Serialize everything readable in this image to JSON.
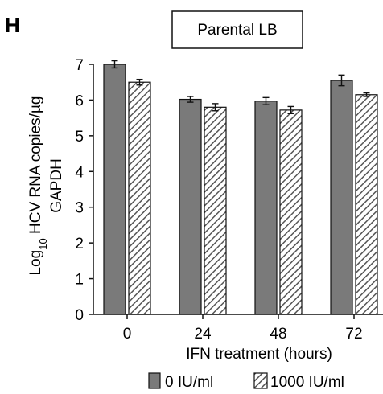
{
  "figure": {
    "panel_letter": "H",
    "box_title": "Parental LB"
  },
  "chart_data": {
    "type": "bar",
    "title": "Parental LB",
    "xlabel": "IFN treatment (hours)",
    "ylabel_main": "Log",
    "ylabel_sub": "10",
    "ylabel_rest": " HCV RNA copies/µg",
    "ylabel_line2": "GAPDH",
    "categories": [
      "0",
      "24",
      "48",
      "72"
    ],
    "ylim": [
      0,
      7
    ],
    "yticks": [
      0,
      1,
      2,
      3,
      4,
      5,
      6,
      7
    ],
    "grid": false,
    "legend_position": "bottom",
    "series": [
      {
        "name": "0 IU/ml",
        "values": [
          7.0,
          6.02,
          5.97,
          6.55
        ],
        "errors": [
          0.1,
          0.08,
          0.1,
          0.15
        ],
        "color": "#7a7a7a",
        "pattern": "solid"
      },
      {
        "name": "1000 IU/ml",
        "values": [
          6.5,
          5.8,
          5.72,
          6.15
        ],
        "errors": [
          0.08,
          0.1,
          0.1,
          0.05
        ],
        "color": "#ffffff",
        "pattern": "hatched"
      }
    ]
  }
}
